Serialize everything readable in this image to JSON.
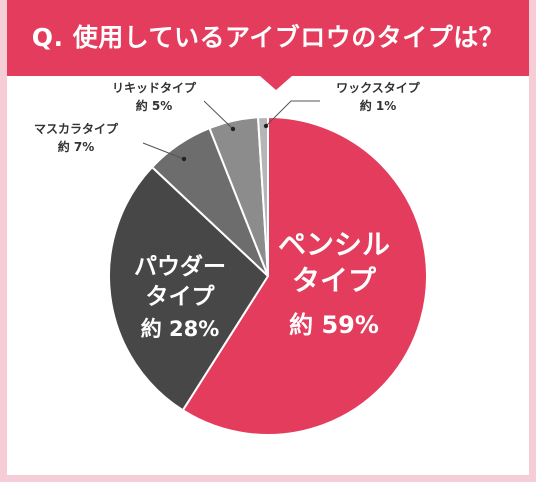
{
  "title": "Q. 使用しているアイブロウのタイプは？",
  "chart_data": {
    "type": "pie",
    "title": "Q. 使用しているアイブロウのタイプは？",
    "slices": [
      {
        "name": "ペンシルタイプ",
        "label_lines": [
          "ペンシル",
          "タイプ"
        ],
        "value_label": "約 59%",
        "value": 59,
        "color": "#e43c5c"
      },
      {
        "name": "パウダータイプ",
        "label_lines": [
          "パウダー",
          "タイプ"
        ],
        "value_label": "約 28%",
        "value": 28,
        "color": "#474747"
      },
      {
        "name": "マスカラタイプ",
        "label_lines": [
          "マスカラタイプ"
        ],
        "value_label": "約 7%",
        "value": 7,
        "color": "#6d6d6d"
      },
      {
        "name": "リキッドタイプ",
        "label_lines": [
          "リキッドタイプ"
        ],
        "value_label": "約 5%",
        "value": 5,
        "color": "#8c8c8c"
      },
      {
        "name": "ワックスタイプ",
        "label_lines": [
          "ワックスタイプ"
        ],
        "value_label": "約 1%",
        "value": 1,
        "color": "#b5b5b5"
      }
    ]
  }
}
